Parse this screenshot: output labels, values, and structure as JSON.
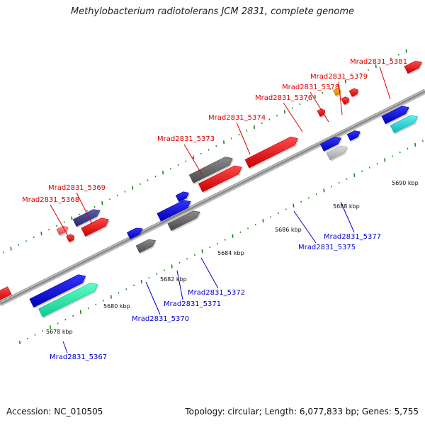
{
  "title": "Methylobacterium radiotolerans JCM 2831, complete genome",
  "footer": {
    "accession": "Accession: NC_010505",
    "summary": "Topology: circular; Length: 6,077,833 bp; Genes: 5,755"
  },
  "colors": {
    "label_top": "#dd0000",
    "label_bottom": "#0000cc",
    "backbone": "#8c8c8c",
    "tick": "#118811"
  },
  "ruler": [
    {
      "label": "5678 kbp"
    },
    {
      "label": "5680 kbp"
    },
    {
      "label": "5682 kbp"
    },
    {
      "label": "5684 kbp"
    },
    {
      "label": "5686 kbp"
    },
    {
      "label": "5688 kbp"
    },
    {
      "label": "5690 kbp"
    }
  ],
  "gene_labels": [
    {
      "text": "Mrad2831_5367",
      "strand": "bottom"
    },
    {
      "text": "Mrad2831_5368",
      "strand": "top"
    },
    {
      "text": "Mrad2831_5369",
      "strand": "top"
    },
    {
      "text": "Mrad2831_5370",
      "strand": "bottom"
    },
    {
      "text": "Mrad2831_5371",
      "strand": "bottom"
    },
    {
      "text": "Mrad2831_5372",
      "strand": "bottom"
    },
    {
      "text": "Mrad2831_5373",
      "strand": "top"
    },
    {
      "text": "Mrad2831_5374",
      "strand": "top"
    },
    {
      "text": "Mrad2831_5375",
      "strand": "bottom"
    },
    {
      "text": "Mrad2831_5376",
      "strand": "top"
    },
    {
      "text": "Mrad2831_5377",
      "strand": "bottom"
    },
    {
      "text": "Mrad2831_5378",
      "strand": "top"
    },
    {
      "text": "Mrad2831_5379",
      "strand": "top"
    },
    {
      "text": "Mrad2831_5381",
      "strand": "top"
    }
  ]
}
